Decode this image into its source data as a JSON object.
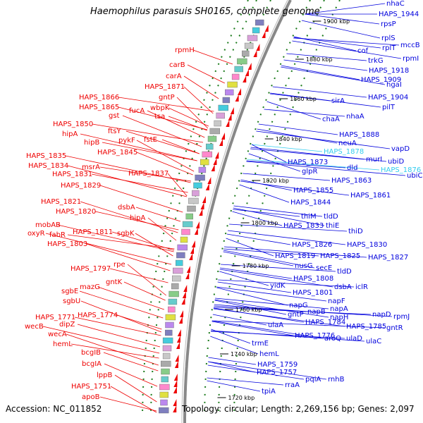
{
  "title": "Haemophilus parasuis SH0165, complete genome",
  "accession": "Accession: NC_011852",
  "summary": "Topology: circular; Length: 2,269,156 bp; Genes: 2,097",
  "colors": {
    "reverse": "#ee0000",
    "forward": "#0000dd",
    "highlight": "#33ccee",
    "ring": "#888888",
    "tick": "#1a7a1a"
  },
  "kbp_ticks": [
    {
      "label": "1900 kbp"
    },
    {
      "label": "1880 kbp"
    },
    {
      "label": "1860 kbp"
    },
    {
      "label": "1840 kbp"
    },
    {
      "label": "1820 kbp"
    },
    {
      "label": "1800 kbp"
    },
    {
      "label": "1780 kbp"
    },
    {
      "label": "1760 kbp"
    },
    {
      "label": "1740 kbp"
    },
    {
      "label": "1720 kbp"
    }
  ],
  "left_labels": [
    {
      "text": "rpmH"
    },
    {
      "text": "carB"
    },
    {
      "text": "carA"
    },
    {
      "text": "HAPS_1871"
    },
    {
      "text": "gntP"
    },
    {
      "text": "HAPS_1866"
    },
    {
      "text": "wbpK"
    },
    {
      "text": "HAPS_1865"
    },
    {
      "text": "fucA"
    },
    {
      "text": "gst"
    },
    {
      "text": "tsa"
    },
    {
      "text": "HAPS_1850"
    },
    {
      "text": "ftsY"
    },
    {
      "text": "hipA"
    },
    {
      "text": "pykF"
    },
    {
      "text": "fstE"
    },
    {
      "text": "hipB"
    },
    {
      "text": "HAPS_1845"
    },
    {
      "text": "HAPS_1835"
    },
    {
      "text": "HAPS_1834"
    },
    {
      "text": "msrA"
    },
    {
      "text": "HAPS_1831"
    },
    {
      "text": "HAPS_1837"
    },
    {
      "text": "HAPS_1829"
    },
    {
      "text": "HAPS_1821"
    },
    {
      "text": "dsbA"
    },
    {
      "text": "HAPS_1820"
    },
    {
      "text": "hipA"
    },
    {
      "text": "mobAB"
    },
    {
      "text": "oxyR"
    },
    {
      "text": "fabR"
    },
    {
      "text": "HAPS_1811"
    },
    {
      "text": "sgbK"
    },
    {
      "text": "HAPS_1803"
    },
    {
      "text": "rpe"
    },
    {
      "text": "HAPS_1797"
    },
    {
      "text": "gntK"
    },
    {
      "text": "mazG"
    },
    {
      "text": "sgbE"
    },
    {
      "text": "sgbU"
    },
    {
      "text": "HAPS_1774"
    },
    {
      "text": "HAPS_1771"
    },
    {
      "text": "dipZ"
    },
    {
      "text": "wecB"
    },
    {
      "text": "wecA"
    },
    {
      "text": "hemL"
    },
    {
      "text": "bcgIB"
    },
    {
      "text": "bcgIA"
    },
    {
      "text": "lppB"
    },
    {
      "text": "HAPS_1751"
    },
    {
      "text": "apoB"
    }
  ],
  "right_labels": [
    {
      "text": "nhaC"
    },
    {
      "text": "HAPS_1944"
    },
    {
      "text": "rpsP"
    },
    {
      "text": "rplS"
    },
    {
      "text": "mccB"
    },
    {
      "text": "rplT"
    },
    {
      "text": "cof"
    },
    {
      "text": "rpmI"
    },
    {
      "text": "trkG"
    },
    {
      "text": "HAPS_1918"
    },
    {
      "text": "HAPS_1909"
    },
    {
      "text": "hgaI"
    },
    {
      "text": "sirA"
    },
    {
      "text": "HAPS_1904"
    },
    {
      "text": "pilT"
    },
    {
      "text": "chaA"
    },
    {
      "text": "nhaA"
    },
    {
      "text": "HAPS_1888"
    },
    {
      "text": "neuA"
    },
    {
      "text": "vapD"
    },
    {
      "text": "HAPS_1878"
    },
    {
      "text": "murI"
    },
    {
      "text": "ubiD"
    },
    {
      "text": "HAPS_1873"
    },
    {
      "text": "dld"
    },
    {
      "text": "HAPS_1876"
    },
    {
      "text": "ubiC"
    },
    {
      "text": "glpR"
    },
    {
      "text": "HAPS_1863"
    },
    {
      "text": "HAPS_1855"
    },
    {
      "text": "HAPS_1861"
    },
    {
      "text": "HAPS_1844"
    },
    {
      "text": "thiM"
    },
    {
      "text": "tldD"
    },
    {
      "text": "HAPS_1833"
    },
    {
      "text": "thiE"
    },
    {
      "text": "thiD"
    },
    {
      "text": "HAPS_1826"
    },
    {
      "text": "HAPS_1830"
    },
    {
      "text": "HAPS_1819"
    },
    {
      "text": "HAPS_1825"
    },
    {
      "text": "HAPS_1827"
    },
    {
      "text": "nusG"
    },
    {
      "text": "secE"
    },
    {
      "text": "tldD"
    },
    {
      "text": "HAPS_1808"
    },
    {
      "text": "yidK"
    },
    {
      "text": "dsbA"
    },
    {
      "text": "iclR"
    },
    {
      "text": "HAPS_1801"
    },
    {
      "text": "napF"
    },
    {
      "text": "napG"
    },
    {
      "text": "napB"
    },
    {
      "text": "napA"
    },
    {
      "text": "gntP"
    },
    {
      "text": "napH"
    },
    {
      "text": "napD"
    },
    {
      "text": "rpmJ"
    },
    {
      "text": "HAPS_1784"
    },
    {
      "text": "HAPS_1785"
    },
    {
      "text": "gntR"
    },
    {
      "text": "ulaA"
    },
    {
      "text": "HAPS_1776"
    },
    {
      "text": "aroQ"
    },
    {
      "text": "ulaD"
    },
    {
      "text": "ulaC"
    },
    {
      "text": "trmE"
    },
    {
      "text": "hemL"
    },
    {
      "text": "HAPS_1759"
    },
    {
      "text": "HAPS_1757"
    },
    {
      "text": "pqiA"
    },
    {
      "text": "rnhB"
    },
    {
      "text": "rraA"
    },
    {
      "text": "tpiA"
    }
  ]
}
